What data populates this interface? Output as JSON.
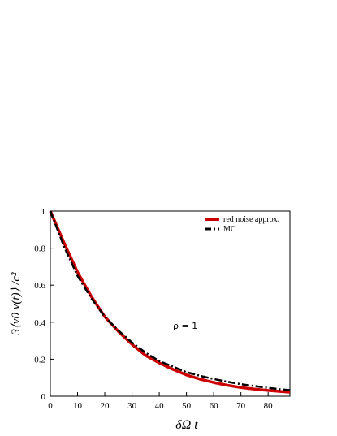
{
  "chart_data": {
    "type": "line",
    "xlabel": "δΩ  t",
    "ylabel": "3⟨v0 v(t)⟩ /c²",
    "xlim": [
      0,
      88
    ],
    "ylim": [
      0,
      1
    ],
    "xticks": [
      0,
      10,
      20,
      30,
      40,
      50,
      60,
      70,
      80
    ],
    "yticks": [
      0,
      0.2,
      0.4,
      0.6,
      0.8,
      1
    ],
    "ytick_labels": [
      "0",
      "0.2",
      "0.4",
      "0.6",
      "0.8",
      "1"
    ],
    "grid": false,
    "legend_position": "top-right",
    "annotation": "ρ = 1",
    "series": [
      {
        "name": "red noise approx.",
        "color": "#cc0000",
        "style": "solid",
        "x": [
          0,
          5,
          10,
          15,
          20,
          25,
          30,
          35,
          40,
          45,
          50,
          55,
          60,
          65,
          70,
          75,
          80,
          85,
          88
        ],
        "y": [
          1.0,
          0.83,
          0.67,
          0.54,
          0.43,
          0.35,
          0.28,
          0.22,
          0.18,
          0.145,
          0.115,
          0.092,
          0.074,
          0.059,
          0.047,
          0.038,
          0.031,
          0.025,
          0.022
        ]
      },
      {
        "name": "MC",
        "color": "#000000",
        "style": "dash-dot",
        "x": [
          0,
          5,
          10,
          15,
          20,
          25,
          30,
          35,
          40,
          45,
          50,
          55,
          60,
          65,
          70,
          75,
          80,
          85,
          88
        ],
        "y": [
          1.0,
          0.81,
          0.65,
          0.53,
          0.43,
          0.355,
          0.29,
          0.235,
          0.19,
          0.16,
          0.13,
          0.11,
          0.093,
          0.078,
          0.065,
          0.055,
          0.045,
          0.037,
          0.033
        ]
      }
    ]
  }
}
